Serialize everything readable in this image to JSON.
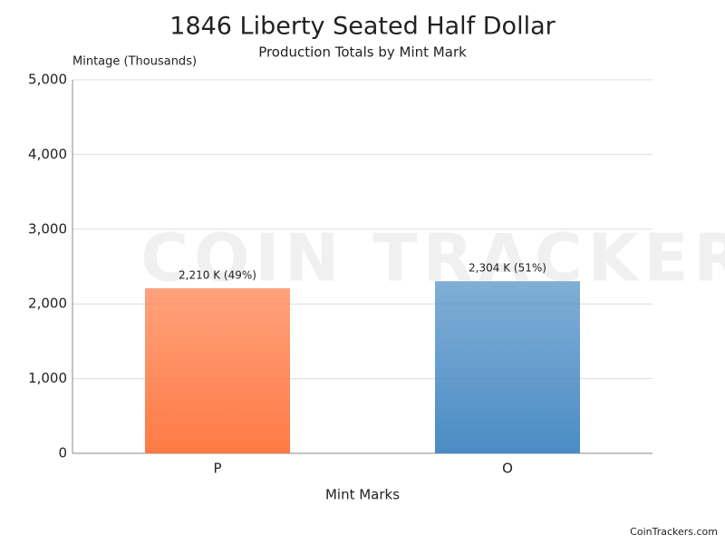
{
  "chart_data": {
    "type": "bar",
    "title": "1846 Liberty Seated Half Dollar",
    "subtitle": "Production Totals by Mint Mark",
    "y_label": "Mintage (Thousands)",
    "x_label": "Mint Marks",
    "categories": [
      "P",
      "O"
    ],
    "values": [
      2210,
      2304
    ],
    "value_labels": [
      "2,210 K (49%)",
      "2,304 K (51%)"
    ],
    "colors": [
      "#ff7a45",
      "#4a8cc4"
    ],
    "ylim": [
      0,
      5000
    ],
    "yticks": [
      0,
      {
        "value": 1000,
        "label": "1,000"
      },
      {
        "value": 2000,
        "label": "2,000"
      },
      {
        "value": 3000,
        "label": "3,000"
      },
      {
        "value": 4000,
        "label": "4,000"
      },
      {
        "value": 5000,
        "label": "5,000"
      }
    ],
    "grid": true,
    "watermark": "COIN TRACKERS",
    "credit": "CoinTrackers.com"
  }
}
